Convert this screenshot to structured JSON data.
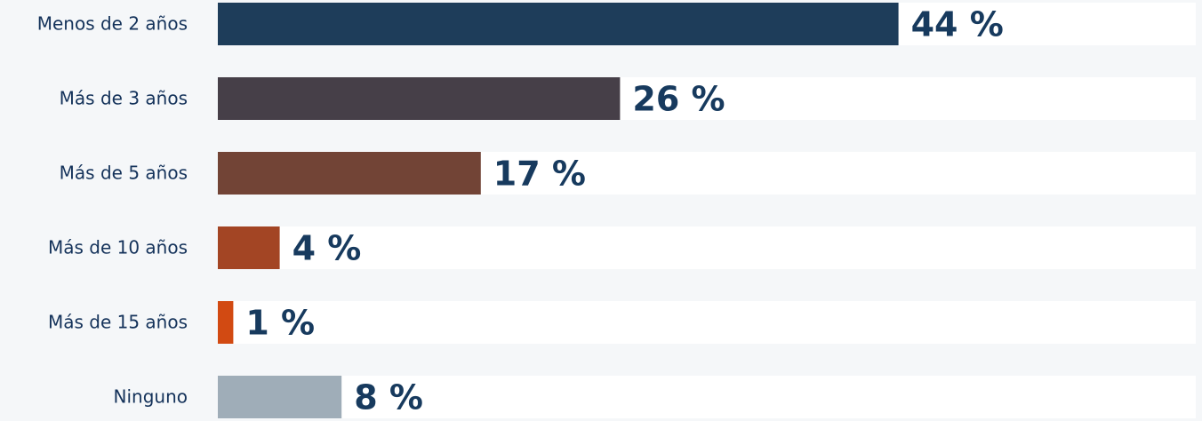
{
  "chart_data": {
    "type": "bar",
    "orientation": "horizontal",
    "categories": [
      "Menos de 2 años",
      "Más de 3 años",
      "Más de 5 años",
      "Más de 10 años",
      "Más de 15 años",
      "Ninguno"
    ],
    "values": [
      44,
      26,
      17,
      4,
      1,
      8
    ],
    "value_labels": [
      "44 %",
      "26 %",
      "17 %",
      "4 %",
      "1 %",
      "8 %"
    ],
    "colors": [
      "#1e3d5a",
      "#463f48",
      "#724436",
      "#a34524",
      "#d24a12",
      "#9fadb8"
    ]
  }
}
